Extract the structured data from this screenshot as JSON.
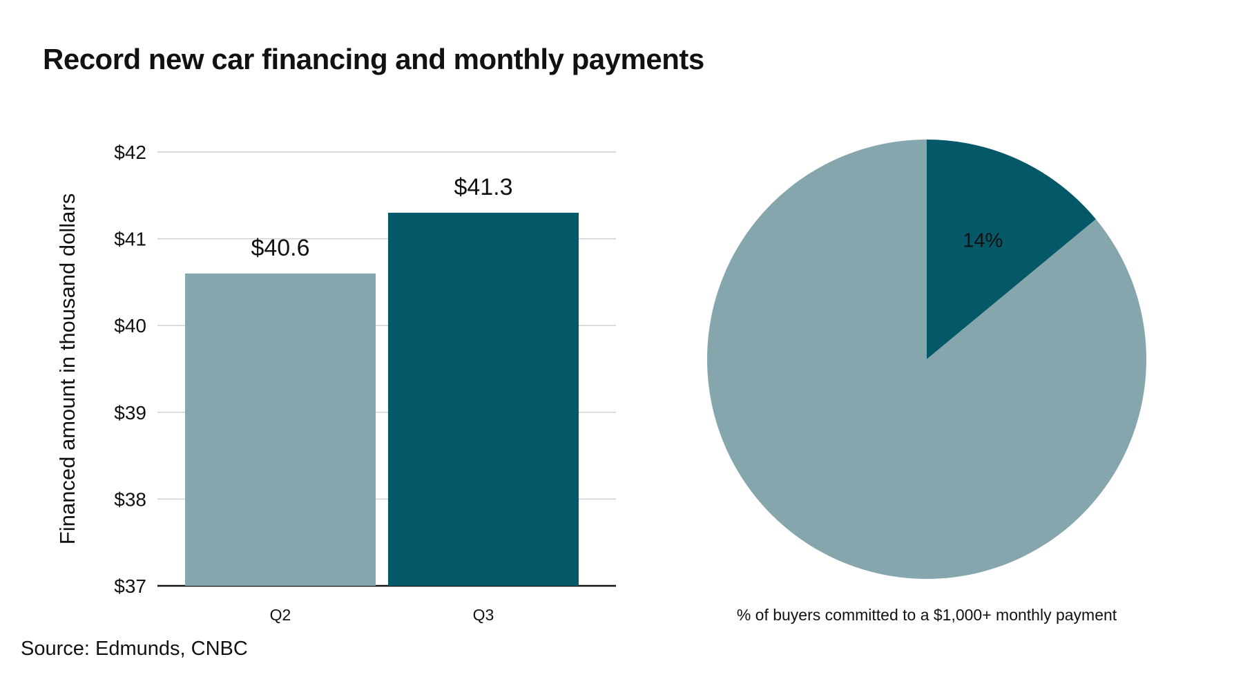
{
  "title": "Record new car financing and monthly payments",
  "source": "Source: Edmunds, CNBC",
  "colors": {
    "light": "#86a6ad",
    "dark": "#045868",
    "grid": "#d0d0d0",
    "axis": "#111111"
  },
  "chart_data": [
    {
      "type": "bar",
      "categories": [
        "Q2",
        "Q3"
      ],
      "values": [
        40.6,
        41.3
      ],
      "data_labels": [
        "$40.6",
        "$41.3"
      ],
      "ylabel": "Financed amount in thousand dollars",
      "ylim": [
        37,
        42
      ],
      "yticks": [
        37,
        38,
        39,
        40,
        41,
        42
      ],
      "ytick_labels": [
        "$37",
        "$38",
        "$39",
        "$40",
        "$41",
        "$42"
      ],
      "bar_colors": [
        "#86a6ad",
        "#045868"
      ],
      "grid": true
    },
    {
      "type": "pie",
      "slices": [
        {
          "label": "14%",
          "value": 14,
          "color": "#045868"
        },
        {
          "label": "",
          "value": 86,
          "color": "#86a6ad"
        }
      ],
      "caption": "% of buyers committed to a $1,000+ monthly payment"
    }
  ]
}
